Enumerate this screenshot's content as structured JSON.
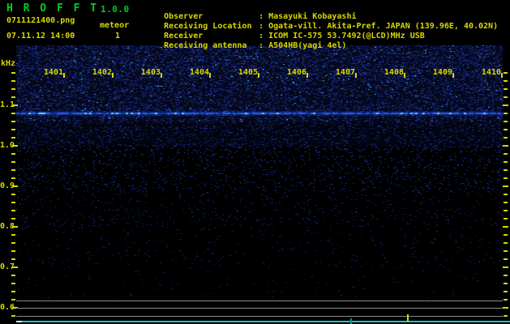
{
  "app": {
    "name": "H R O F F T",
    "version": "1.0.0"
  },
  "capture": {
    "filename": "0711121400.png",
    "mode": "meteor",
    "datetime": "07.11.12 14:00",
    "count": "1"
  },
  "info": {
    "separator": ":",
    "rows": [
      {
        "label": "Observer",
        "value": "Masayuki Kobayashi"
      },
      {
        "label": "Receiving Location",
        "value": "Ogata-vill. Akita-Pref. JAPAN (139.96E, 40.02N)"
      },
      {
        "label": "Receiver",
        "value": "ICOM IC-575 53.7492(@LCD)MHz USB"
      },
      {
        "label": "Receiving antenna",
        "value": "A504HB(yagi 4el)"
      }
    ]
  },
  "spectrogram": {
    "y_unit": "kHz",
    "freq_tick_labels": [
      "1.1",
      "1.0",
      "0.9",
      "0.8",
      "0.7",
      "0.6"
    ],
    "time_tick_labels": [
      "1401",
      "1402",
      "1403",
      "1404",
      "1405",
      "1406",
      "1407",
      "1408",
      "1409",
      "1410"
    ],
    "carrier_line_khz": "1.08",
    "colors": {
      "text_yellow": "#d8d800",
      "title_green": "#00cc22",
      "noise_blue": "#1b55e8",
      "carrier_blue": "#0a36b8",
      "carrier_bright": "#2261ef",
      "carrier_cyan": "#63d8ff",
      "meter_gray": "#8a8a8a",
      "level_cyan": "#00d0d0"
    }
  }
}
